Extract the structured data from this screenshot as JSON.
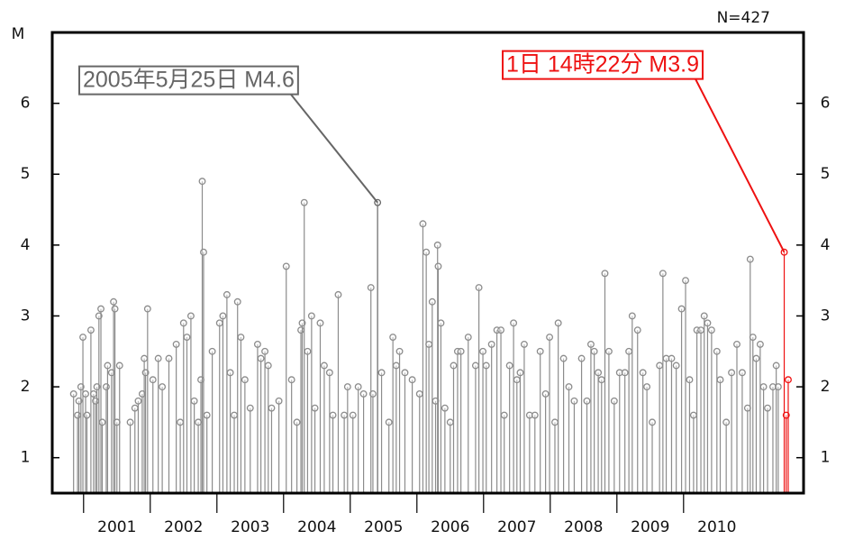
{
  "chart_data": {
    "type": "stem",
    "y_label": "M",
    "count_label": "N=427",
    "xlim": [
      2000.53,
      2011.8
    ],
    "ylim": [
      0.5,
      7.0
    ],
    "xticks": [
      {
        "value": 2001,
        "label": "2001"
      },
      {
        "value": 2002,
        "label": "2002"
      },
      {
        "value": 2003,
        "label": "2003"
      },
      {
        "value": 2004,
        "label": "2004"
      },
      {
        "value": 2005,
        "label": "2005"
      },
      {
        "value": 2006,
        "label": "2006"
      },
      {
        "value": 2007,
        "label": "2007"
      },
      {
        "value": 2008,
        "label": "2008"
      },
      {
        "value": 2009,
        "label": "2009"
      },
      {
        "value": 2010,
        "label": "2010"
      }
    ],
    "yticks": [
      1,
      2,
      3,
      4,
      5,
      6
    ],
    "series": [
      {
        "color": "#8c8c8c",
        "x": [
          2000.85,
          2000.91,
          2000.93,
          2000.96,
          2000.99,
          2001.03,
          2001.05,
          2001.11,
          2001.15,
          2001.18,
          2001.2,
          2001.23,
          2001.26,
          2001.28,
          2001.34,
          2001.36,
          2001.42,
          2001.45,
          2001.47,
          2001.5,
          2001.54,
          2001.7,
          2001.77,
          2001.82,
          2001.88,
          2001.91,
          2001.93,
          2001.96,
          2002.04,
          2002.12,
          2002.18,
          2002.28,
          2002.39,
          2002.45,
          2002.5,
          2002.55,
          2002.61,
          2002.66,
          2002.72,
          2002.76,
          2002.78,
          2002.8,
          2002.85,
          2002.93,
          2003.04,
          2003.09,
          2003.15,
          2003.2,
          2003.26,
          2003.31,
          2003.36,
          2003.42,
          2003.5,
          2003.61,
          2003.66,
          2003.72,
          2003.77,
          2003.82,
          2003.93,
          2004.04,
          2004.12,
          2004.2,
          2004.26,
          2004.28,
          2004.31,
          2004.36,
          2004.42,
          2004.47,
          2004.55,
          2004.61,
          2004.69,
          2004.74,
          2004.82,
          2004.91,
          2004.96,
          2005.04,
          2005.12,
          2005.2,
          2005.31,
          2005.34,
          2005.47,
          2005.58,
          2005.64,
          2005.69,
          2005.74,
          2005.82,
          2005.93,
          2006.04,
          2006.09,
          2006.14,
          2006.18,
          2006.23,
          2006.28,
          2006.31,
          2006.32,
          2006.36,
          2006.42,
          2006.5,
          2006.55,
          2006.61,
          2006.66,
          2006.77,
          2006.88,
          2006.93,
          2006.99,
          2007.04,
          2007.12,
          2007.2,
          2007.26,
          2007.31,
          2007.39,
          2007.45,
          2007.5,
          2007.55,
          2007.61,
          2007.69,
          2007.77,
          2007.85,
          2007.93,
          2007.99,
          2008.07,
          2008.12,
          2008.2,
          2008.28,
          2008.36,
          2008.47,
          2008.55,
          2008.61,
          2008.66,
          2008.72,
          2008.77,
          2008.82,
          2008.88,
          2008.96,
          2009.04,
          2009.12,
          2009.18,
          2009.23,
          2009.31,
          2009.39,
          2009.45,
          2009.53,
          2009.64,
          2009.69,
          2009.74,
          2009.82,
          2009.89,
          2009.97,
          2010.03,
          2010.09,
          2010.15,
          2010.2,
          2010.26,
          2010.31,
          2010.36,
          2010.42,
          2010.5,
          2010.55,
          2010.64,
          2010.72,
          2010.8,
          2010.88,
          2010.96,
          2011.0,
          2011.04,
          2011.09,
          2011.15,
          2011.2,
          2011.26,
          2011.34,
          2011.39,
          2011.42
        ],
        "values": [
          1.9,
          1.6,
          1.8,
          2.0,
          2.7,
          1.9,
          1.6,
          2.8,
          1.9,
          1.8,
          2.0,
          3.0,
          3.1,
          1.5,
          2.0,
          2.3,
          2.2,
          3.2,
          3.1,
          1.5,
          2.3,
          1.5,
          1.7,
          1.8,
          1.9,
          2.4,
          2.2,
          3.1,
          2.1,
          2.4,
          2.0,
          2.4,
          2.6,
          1.5,
          2.9,
          2.7,
          3.0,
          1.8,
          1.5,
          2.1,
          4.9,
          3.9,
          1.6,
          2.5,
          2.9,
          3.0,
          3.3,
          2.2,
          1.6,
          3.2,
          2.7,
          2.1,
          1.7,
          2.6,
          2.4,
          2.5,
          2.3,
          1.7,
          1.8,
          3.7,
          2.1,
          1.5,
          2.8,
          2.9,
          4.6,
          2.5,
          3.0,
          1.7,
          2.9,
          2.3,
          2.2,
          1.6,
          3.3,
          1.6,
          2.0,
          1.6,
          2.0,
          1.9,
          3.4,
          1.9,
          2.2,
          1.5,
          2.7,
          2.3,
          2.5,
          2.2,
          2.1,
          1.9,
          4.3,
          3.9,
          2.6,
          3.2,
          1.8,
          4.0,
          3.7,
          2.9,
          1.7,
          1.5,
          2.3,
          2.5,
          2.5,
          2.7,
          2.3,
          3.4,
          2.5,
          2.3,
          2.6,
          2.8,
          2.8,
          1.6,
          2.3,
          2.9,
          2.1,
          2.2,
          2.6,
          1.6,
          1.6,
          2.5,
          1.9,
          2.7,
          1.5,
          2.9,
          2.4,
          2.0,
          1.8,
          2.4,
          1.8,
          2.6,
          2.5,
          2.2,
          2.1,
          3.6,
          2.5,
          1.8,
          2.2,
          2.2,
          2.5,
          3.0,
          2.8,
          2.2,
          2.0,
          1.5,
          2.3,
          3.6,
          2.4,
          2.4,
          2.3,
          3.1,
          3.5,
          2.1,
          1.6,
          2.8,
          2.8,
          3.0,
          2.9,
          2.8,
          2.5,
          2.1,
          1.5,
          2.2,
          2.6,
          2.2,
          1.7,
          3.8,
          2.7,
          2.4,
          2.6,
          2.0,
          1.7,
          2.0,
          2.3,
          2.0
        ]
      },
      {
        "color": "#666666",
        "x": [
          2005.41
        ],
        "values": [
          4.6
        ]
      },
      {
        "color": "#ee1111",
        "x": [
          2011.51,
          2011.54,
          2011.57
        ],
        "values": [
          3.9,
          1.6,
          2.1
        ]
      }
    ],
    "annotations": [
      {
        "text": "2005年5月25日 M4.6",
        "color": "#666666"
      },
      {
        "text": "1日 14時22分 M3.9",
        "color": "#ee1111"
      }
    ]
  }
}
